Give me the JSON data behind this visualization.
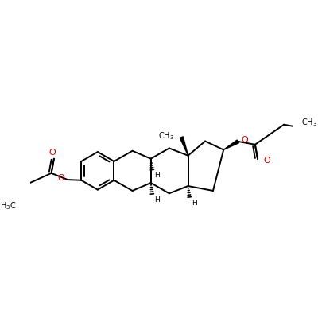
{
  "background_color": "#ffffff",
  "bond_color": "#000000",
  "oxygen_color": "#cc0000",
  "line_width": 1.4,
  "figsize": [
    4.0,
    4.0
  ],
  "dpi": 100,
  "xlim": [
    0,
    10
  ],
  "ylim": [
    2.5,
    8.5
  ]
}
